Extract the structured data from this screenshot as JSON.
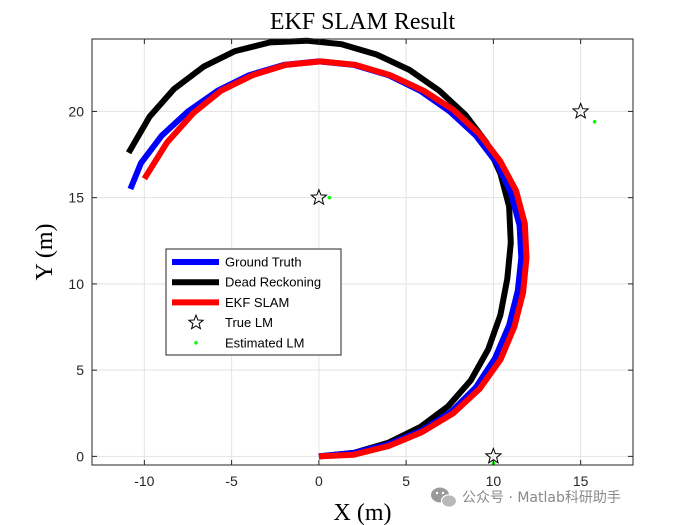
{
  "chart_data": {
    "type": "line",
    "title": "EKF SLAM Result",
    "xlabel": "X (m)",
    "ylabel": "Y (m)",
    "xlim": [
      -13,
      18
    ],
    "ylim": [
      -0.5,
      24.2
    ],
    "xticks": [
      -10,
      -5,
      0,
      5,
      10,
      15
    ],
    "yticks": [
      0,
      5,
      10,
      15,
      20
    ],
    "grid": true,
    "legend_position": "center-left",
    "series": [
      {
        "name": "Ground Truth",
        "color": "#0000ff",
        "style": "line",
        "x": [
          0,
          2.0,
          4.0,
          5.9,
          7.6,
          9.0,
          10.1,
          10.9,
          11.4,
          11.6,
          11.5,
          11.0,
          10.2,
          9.0,
          7.5,
          5.8,
          4.0,
          2.0,
          0,
          -2.0,
          -4.0,
          -5.8,
          -7.5,
          -9.0,
          -10.2,
          -10.8
        ],
        "y": [
          0,
          0.2,
          0.7,
          1.5,
          2.6,
          4.0,
          5.7,
          7.6,
          9.6,
          11.5,
          13.4,
          15.3,
          17.0,
          18.6,
          20.0,
          21.2,
          22.1,
          22.7,
          22.9,
          22.7,
          22.1,
          21.2,
          20.0,
          18.6,
          17.0,
          15.5
        ]
      },
      {
        "name": "Dead Reckoning",
        "color": "#000000",
        "style": "line",
        "x": [
          0,
          2.0,
          4.0,
          5.8,
          7.4,
          8.7,
          9.7,
          10.4,
          10.8,
          11.0,
          10.9,
          10.4,
          9.6,
          8.4,
          6.9,
          5.2,
          3.3,
          1.3,
          -0.7,
          -2.8,
          -4.8,
          -6.6,
          -8.3,
          -9.7,
          -10.9
        ],
        "y": [
          0,
          0.2,
          0.8,
          1.7,
          2.9,
          4.4,
          6.2,
          8.2,
          10.3,
          12.4,
          14.5,
          16.4,
          18.2,
          19.8,
          21.2,
          22.4,
          23.3,
          23.9,
          24.1,
          24.0,
          23.5,
          22.6,
          21.3,
          19.7,
          17.6
        ]
      },
      {
        "name": "EKF SLAM",
        "color": "#ff0000",
        "style": "line",
        "x": [
          0,
          2.0,
          4.0,
          5.9,
          7.7,
          9.2,
          10.4,
          11.2,
          11.7,
          11.9,
          11.8,
          11.3,
          10.4,
          9.2,
          7.7,
          6.0,
          4.1,
          2.1,
          0.1,
          -1.9,
          -3.8,
          -5.6,
          -7.2,
          -8.7,
          -10.0
        ],
        "y": [
          0,
          0.1,
          0.6,
          1.4,
          2.5,
          3.9,
          5.6,
          7.5,
          9.5,
          11.5,
          13.5,
          15.4,
          17.1,
          18.7,
          20.1,
          21.2,
          22.1,
          22.7,
          22.9,
          22.7,
          22.1,
          21.2,
          19.9,
          18.2,
          16.1
        ]
      },
      {
        "name": "True LM",
        "color": "#000000",
        "style": "star",
        "x": [
          0,
          10,
          15
        ],
        "y": [
          15,
          0,
          20
        ]
      },
      {
        "name": "Estimated LM",
        "color": "#00ff00",
        "style": "point",
        "x": [
          0.6,
          10.0,
          15.8
        ],
        "y": [
          15.0,
          -0.4,
          19.4
        ]
      }
    ]
  },
  "watermark": {
    "icon": "wechat-icon",
    "text": "公众号 · Matlab科研助手"
  }
}
